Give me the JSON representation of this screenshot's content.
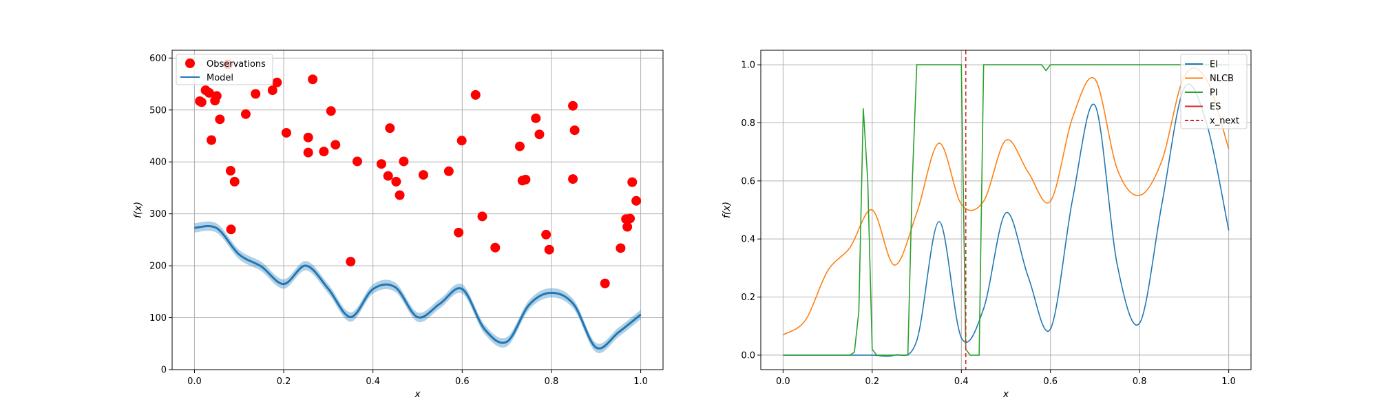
{
  "chart_data": [
    {
      "type": "scatter",
      "xlabel": "x",
      "ylabel": "f(x)",
      "xlim": [
        -0.05,
        1.05
      ],
      "ylim": [
        0,
        615
      ],
      "xticks": [
        "0.0",
        "0.2",
        "0.4",
        "0.6",
        "0.8",
        "1.0"
      ],
      "yticks": [
        "0",
        "100",
        "200",
        "300",
        "400",
        "500",
        "600"
      ],
      "grid": true,
      "legend": {
        "position": "top-left",
        "entries": [
          "Observations",
          "Model"
        ]
      },
      "colors": {
        "observations": "#ff0000",
        "model": "#1f77b4"
      },
      "series": [
        {
          "name": "Observations",
          "kind": "scatter",
          "points": [
            [
              0.012,
              517
            ],
            [
              0.016,
              515
            ],
            [
              0.025,
              538
            ],
            [
              0.033,
              533
            ],
            [
              0.038,
              442
            ],
            [
              0.046,
              518
            ],
            [
              0.05,
              527
            ],
            [
              0.057,
              482
            ],
            [
              0.075,
              588
            ],
            [
              0.081,
              383
            ],
            [
              0.082,
              270
            ],
            [
              0.09,
              362
            ],
            [
              0.115,
              492
            ],
            [
              0.137,
              531
            ],
            [
              0.175,
              538
            ],
            [
              0.185,
              553
            ],
            [
              0.206,
              456
            ],
            [
              0.255,
              447
            ],
            [
              0.255,
              418
            ],
            [
              0.265,
              559
            ],
            [
              0.29,
              420
            ],
            [
              0.306,
              498
            ],
            [
              0.316,
              433
            ],
            [
              0.35,
              208
            ],
            [
              0.365,
              401
            ],
            [
              0.419,
              396
            ],
            [
              0.434,
              373
            ],
            [
              0.438,
              465
            ],
            [
              0.452,
              362
            ],
            [
              0.46,
              336
            ],
            [
              0.469,
              401
            ],
            [
              0.513,
              375
            ],
            [
              0.57,
              382
            ],
            [
              0.592,
              264
            ],
            [
              0.599,
              441
            ],
            [
              0.63,
              529
            ],
            [
              0.645,
              295
            ],
            [
              0.674,
              235
            ],
            [
              0.729,
              430
            ],
            [
              0.735,
              364
            ],
            [
              0.742,
              366
            ],
            [
              0.765,
              484
            ],
            [
              0.773,
              453
            ],
            [
              0.788,
              260
            ],
            [
              0.795,
              231
            ],
            [
              0.848,
              508
            ],
            [
              0.852,
              461
            ],
            [
              0.848,
              367
            ],
            [
              0.92,
              166
            ],
            [
              0.955,
              234
            ],
            [
              0.967,
              290
            ],
            [
              0.97,
              275
            ],
            [
              0.976,
              291
            ],
            [
              0.981,
              361
            ],
            [
              0.99,
              325
            ]
          ]
        },
        {
          "name": "Model",
          "kind": "line",
          "x": [
            0.0,
            0.05,
            0.1,
            0.15,
            0.2,
            0.25,
            0.3,
            0.35,
            0.4,
            0.45,
            0.5,
            0.55,
            0.6,
            0.65,
            0.7,
            0.75,
            0.8,
            0.85,
            0.9,
            0.95,
            1.0
          ],
          "y": [
            273.0,
            272.4,
            221.8,
            198.5,
            164.9,
            200.2,
            155.5,
            101.2,
            155.1,
            158.7,
            101.2,
            126.9,
            155.4,
            78.0,
            53.6,
            124.9,
            147.9,
            125.5,
            42.5,
            71.7,
            106.1
          ],
          "band": 9
        }
      ]
    },
    {
      "type": "line",
      "xlabel": "x",
      "ylabel": "f(x)",
      "xlim": [
        -0.05,
        1.05
      ],
      "ylim": [
        -0.05,
        1.05
      ],
      "xticks": [
        "0.0",
        "0.2",
        "0.4",
        "0.6",
        "0.8",
        "1.0"
      ],
      "yticks": [
        "0.0",
        "0.2",
        "0.4",
        "0.6",
        "0.8",
        "1.0"
      ],
      "grid": true,
      "legend": {
        "position": "top-right",
        "entries": [
          "EI",
          "NLCB",
          "PI",
          "ES",
          "x_next"
        ]
      },
      "x_next": 0.41,
      "colors": {
        "EI": "#1f77b4",
        "NLCB": "#ff7f0e",
        "PI": "#2ca02c",
        "ES": "#d62728",
        "x_next": "#d62728"
      },
      "series": [
        {
          "name": "EI",
          "x": [
            0.0,
            0.05,
            0.1,
            0.15,
            0.2,
            0.25,
            0.3,
            0.35,
            0.4,
            0.45,
            0.5,
            0.55,
            0.6,
            0.65,
            0.7,
            0.75,
            0.8,
            0.85,
            0.9,
            0.95,
            1.0
          ],
          "y": [
            0.0,
            0.0,
            0.0,
            0.0,
            0.0,
            0.0,
            0.05,
            0.46,
            0.06,
            0.16,
            0.49,
            0.27,
            0.09,
            0.54,
            0.86,
            0.31,
            0.11,
            0.52,
            0.92,
            0.8,
            0.43
          ]
        },
        {
          "name": "NLCB",
          "x": [
            0.0,
            0.05,
            0.1,
            0.15,
            0.2,
            0.25,
            0.3,
            0.35,
            0.4,
            0.45,
            0.5,
            0.55,
            0.6,
            0.65,
            0.7,
            0.75,
            0.8,
            0.85,
            0.9,
            0.95,
            1.0
          ],
          "y": [
            0.07,
            0.12,
            0.29,
            0.37,
            0.5,
            0.31,
            0.49,
            0.73,
            0.52,
            0.53,
            0.74,
            0.63,
            0.53,
            0.82,
            0.95,
            0.64,
            0.55,
            0.67,
            0.96,
            0.95,
            0.71
          ]
        },
        {
          "name": "PI",
          "x": [
            0.0,
            0.05,
            0.1,
            0.15,
            0.16,
            0.17,
            0.18,
            0.19,
            0.2,
            0.21,
            0.22,
            0.25,
            0.28,
            0.29,
            0.3,
            0.35,
            0.4,
            0.41,
            0.42,
            0.44,
            0.45,
            0.5,
            0.55,
            0.58,
            0.59,
            0.6,
            0.65,
            0.7,
            0.75,
            0.8,
            0.85,
            0.9,
            0.95,
            1.0
          ],
          "y": [
            0.0,
            0.0,
            0.0,
            0.0,
            0.01,
            0.15,
            0.85,
            0.6,
            0.02,
            0.0,
            0.0,
            0.0,
            0.0,
            0.6,
            1.0,
            1.0,
            1.0,
            0.02,
            0.0,
            0.0,
            1.0,
            1.0,
            1.0,
            1.0,
            0.98,
            1.0,
            1.0,
            1.0,
            1.0,
            1.0,
            1.0,
            1.0,
            1.0,
            1.0
          ]
        },
        {
          "name": "ES",
          "x": [],
          "y": []
        }
      ]
    }
  ]
}
